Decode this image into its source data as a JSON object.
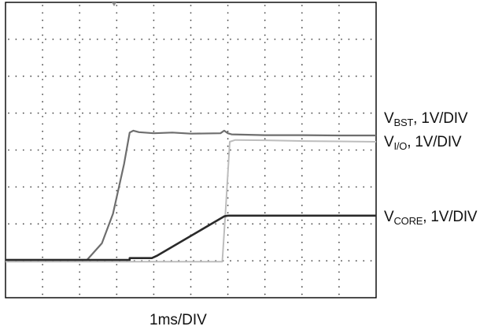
{
  "chart_data": {
    "type": "line",
    "title": "",
    "xlabel": "1ms/DIV",
    "ylabel": "",
    "x_divisions": 10,
    "y_divisions": 8,
    "grid": true,
    "xlim": [
      0,
      10
    ],
    "ylim": [
      0,
      8
    ],
    "series": [
      {
        "name_main": "V",
        "name_sub": "BST",
        "name_suffix": ", 1V/DIV",
        "color": "#6e6e6e",
        "x": [
          0,
          2.2,
          2.6,
          2.9,
          3.2,
          3.35,
          3.45,
          3.6,
          4.0,
          4.5,
          5.0,
          5.8,
          5.9,
          6.0,
          6.1,
          7.0,
          8.0,
          9.0,
          10.0
        ],
        "y": [
          0.0,
          0.0,
          0.45,
          1.25,
          2.6,
          3.45,
          3.5,
          3.46,
          3.43,
          3.45,
          3.42,
          3.43,
          3.5,
          3.43,
          3.4,
          3.38,
          3.38,
          3.37,
          3.37
        ]
      },
      {
        "name_main": "V",
        "name_sub": "I/O",
        "name_suffix": ", 1V/DIV",
        "color": "#bdbdbd",
        "x": [
          0,
          5.85,
          5.95,
          6.05,
          6.2,
          7.0,
          8.0,
          9.0,
          10.0
        ],
        "y": [
          -0.05,
          -0.05,
          1.5,
          3.2,
          3.25,
          3.24,
          3.22,
          3.21,
          3.2
        ]
      },
      {
        "name_main": "V",
        "name_sub": "CORE",
        "name_suffix": ", 1V/DIV",
        "color": "#2a2a2a",
        "x": [
          0,
          3.35,
          3.35,
          3.95,
          4.1,
          5.9,
          6.0,
          7.0,
          8.0,
          9.0,
          10.0
        ],
        "y": [
          0.0,
          0.0,
          0.05,
          0.05,
          0.12,
          1.18,
          1.2,
          1.2,
          1.2,
          1.2,
          1.2
        ]
      }
    ]
  }
}
